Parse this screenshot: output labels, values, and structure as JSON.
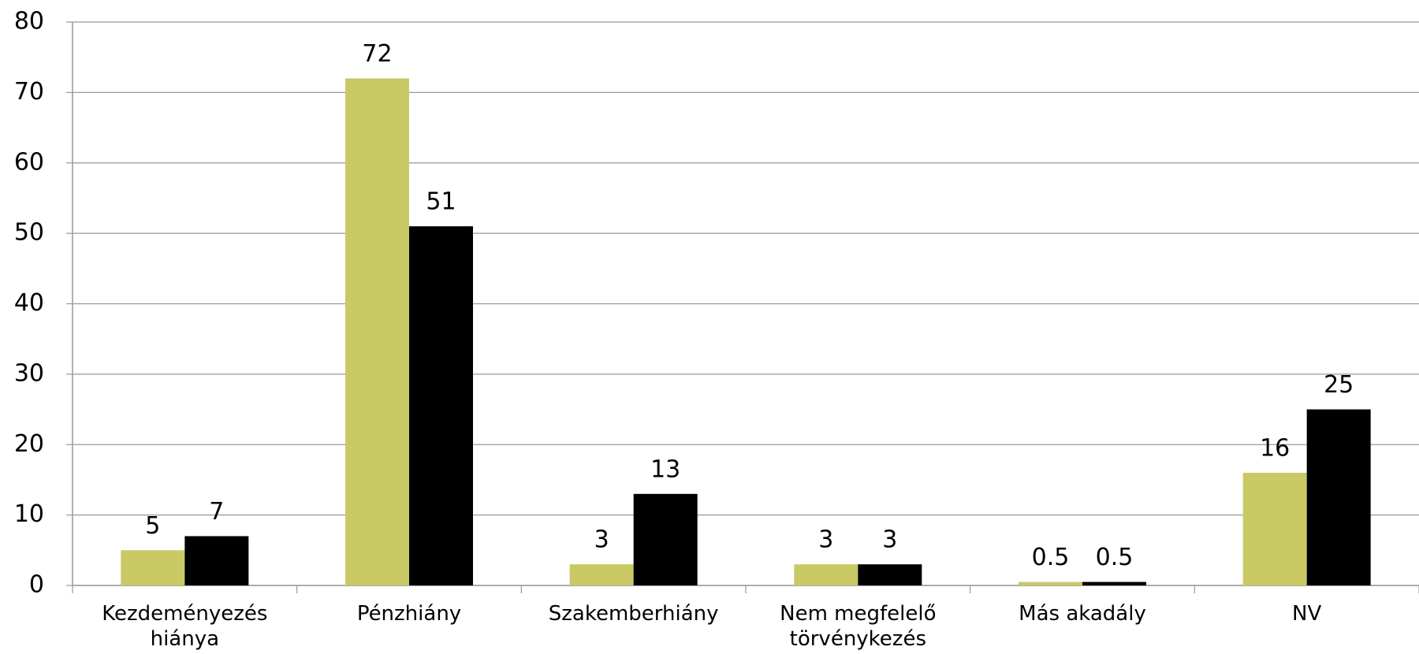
{
  "chart_data": {
    "type": "bar",
    "categories": [
      "Kezdeményezés hiánya",
      "Pénzhiány",
      "Szakemberhiány",
      "Nem megfelelő törvénykezés",
      "Más akadály",
      "NV"
    ],
    "series": [
      {
        "color": "#c9c966",
        "values": [
          5,
          72,
          3,
          3,
          0.5,
          16
        ]
      },
      {
        "color": "#000000",
        "values": [
          7,
          51,
          13,
          3,
          0.5,
          25
        ]
      }
    ],
    "ylim": [
      0,
      80
    ],
    "yticks": [
      0,
      10,
      20,
      30,
      40,
      50,
      60,
      70,
      80
    ],
    "grid": true,
    "data_labels": true
  }
}
